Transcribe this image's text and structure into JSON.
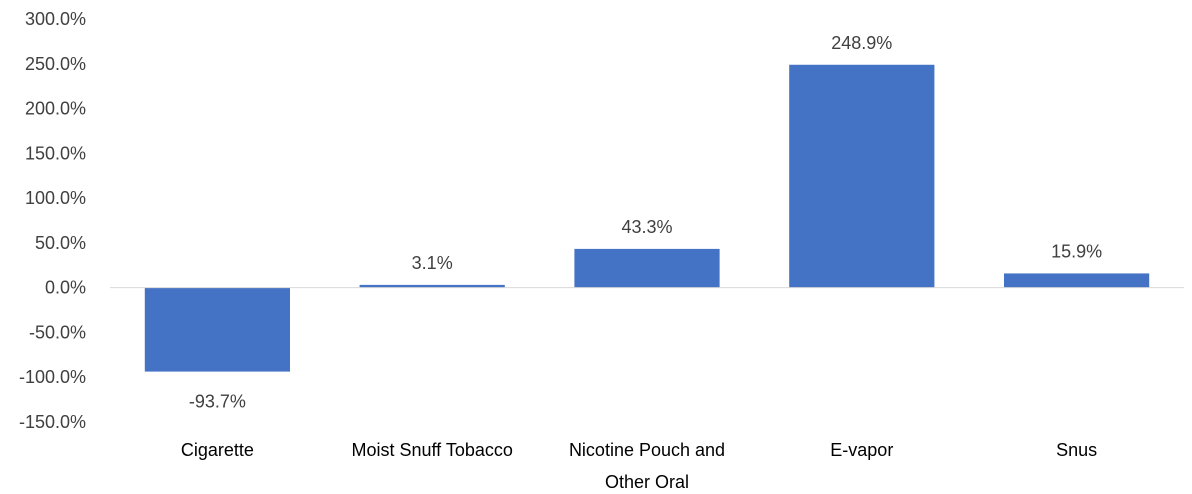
{
  "chart_data": {
    "type": "bar",
    "categories": [
      "Cigarette",
      "Moist Snuff Tobacco",
      "Nicotine Pouch and Other Oral",
      "E-vapor",
      "Snus"
    ],
    "category_label_lines": [
      [
        "Cigarette"
      ],
      [
        "Moist Snuff Tobacco"
      ],
      [
        "Nicotine Pouch and",
        "Other Oral"
      ],
      [
        "E-vapor"
      ],
      [
        "Snus"
      ]
    ],
    "values": [
      -93.7,
      3.1,
      43.3,
      248.9,
      15.9
    ],
    "data_labels": [
      "-93.7%",
      "3.1%",
      "43.3%",
      "248.9%",
      "15.9%"
    ],
    "ylim": [
      -150,
      300
    ],
    "yticks": [
      300,
      250,
      200,
      150,
      100,
      50,
      0,
      -50,
      -100,
      -150
    ],
    "ytick_labels": [
      "300.0%",
      "250.0%",
      "200.0%",
      "150.0%",
      "100.0%",
      "50.0%",
      "0.0%",
      "-50.0%",
      "-100.0%",
      "-150.0%"
    ],
    "bar_color": "#4472C4",
    "axis_color": "#D9D9D9",
    "grid": false,
    "legend": "none",
    "title": "",
    "xlabel": "",
    "ylabel": ""
  }
}
